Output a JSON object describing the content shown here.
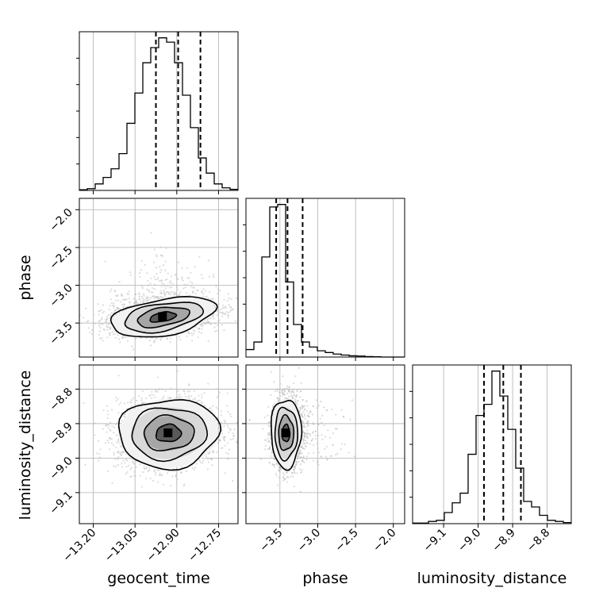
{
  "chart_data": {
    "type": "corner",
    "parameters": [
      "geocent_time",
      "phase",
      "luminosity_distance"
    ],
    "axis_labels": {
      "geocent_time": "geocent_time",
      "phase": "phase",
      "luminosity_distance": "luminosity_distance"
    },
    "ranges": {
      "geocent_time": [
        -13.25,
        -12.68
      ],
      "phase": [
        -3.95,
        -1.85
      ],
      "luminosity_distance": [
        -9.19,
        -8.73
      ]
    },
    "ticks": {
      "geocent_time": {
        "values": [
          -13.2,
          -13.05,
          -12.9,
          -12.75
        ],
        "labels": [
          "−13.20",
          "−13.05",
          "−12.90",
          "−12.75"
        ]
      },
      "phase": {
        "values": [
          -3.5,
          -3.0,
          -2.5,
          -2.0
        ],
        "labels": [
          "−3.5",
          "−3.0",
          "−2.5",
          "−2.0"
        ]
      },
      "luminosity_distance": {
        "values": [
          -9.1,
          -9.0,
          -8.9,
          -8.8
        ],
        "labels": [
          "−9.1",
          "−9.0",
          "−8.9",
          "−8.8"
        ]
      }
    },
    "quantiles": {
      "geocent_time": [
        -12.975,
        -12.895,
        -12.815
      ],
      "phase": [
        -3.55,
        -3.4,
        -3.2
      ],
      "luminosity_distance": [
        -8.983,
        -8.927,
        -8.876
      ]
    },
    "histograms": {
      "geocent_time": {
        "bin_edges": [
          -13.25,
          -13.2215,
          -13.193,
          -13.1645,
          -13.136,
          -13.1075,
          -13.079,
          -13.0505,
          -13.022,
          -12.9935,
          -12.965,
          -12.9365,
          -12.908,
          -12.8795,
          -12.851,
          -12.8225,
          -12.794,
          -12.7655,
          -12.737,
          -12.7085,
          -12.68
        ],
        "counts": [
          3,
          8,
          30,
          60,
          100,
          170,
          310,
          450,
          590,
          660,
          705,
          685,
          590,
          440,
          290,
          150,
          80,
          30,
          12,
          5
        ]
      },
      "phase": {
        "bin_edges": [
          -3.95,
          -3.845,
          -3.74,
          -3.635,
          -3.53,
          -3.425,
          -3.32,
          -3.215,
          -3.11,
          -3.005,
          -2.9,
          -2.795,
          -2.69,
          -2.585,
          -2.48,
          -2.375,
          -2.27,
          -2.165,
          -2.06,
          -1.955,
          -1.85
        ],
        "counts": [
          30,
          60,
          400,
          600,
          610,
          300,
          130,
          60,
          40,
          25,
          18,
          12,
          8,
          5,
          4,
          2,
          1,
          0,
          0,
          0
        ]
      },
      "luminosity_distance": {
        "bin_edges": [
          -9.19,
          -9.167,
          -9.144,
          -9.121,
          -9.098,
          -9.075,
          -9.052,
          -9.029,
          -9.006,
          -8.983,
          -8.96,
          -8.937,
          -8.914,
          -8.891,
          -8.868,
          -8.845,
          -8.822,
          -8.799,
          -8.776,
          -8.753,
          -8.73
        ],
        "counts": [
          2,
          2,
          8,
          12,
          40,
          75,
          110,
          250,
          390,
          430,
          550,
          460,
          340,
          200,
          80,
          60,
          30,
          12,
          8,
          4
        ]
      }
    },
    "scatter_panels": [
      {
        "x": "geocent_time",
        "y": "phase",
        "mean": [
          -12.95,
          -3.42
        ],
        "std": [
          0.095,
          0.12
        ],
        "corr": 0.3,
        "tail_y": 0.35
      },
      {
        "x": "geocent_time",
        "y": "luminosity_distance",
        "mean": [
          -12.93,
          -8.928
        ],
        "std": [
          0.09,
          0.05
        ],
        "corr": 0.1,
        "tail_y": 0
      },
      {
        "x": "phase",
        "y": "luminosity_distance",
        "mean": [
          -3.42,
          -8.928
        ],
        "std": [
          0.1,
          0.05
        ],
        "corr": 0.0,
        "tail_x": 0.3
      }
    ],
    "contour_levels": [
      "0.5σ",
      "1σ",
      "1.5σ",
      "2σ"
    ],
    "grid": true,
    "colors": {
      "line": "#000000",
      "points": "#bfbfbf",
      "grid": "#b0b0b0"
    }
  }
}
